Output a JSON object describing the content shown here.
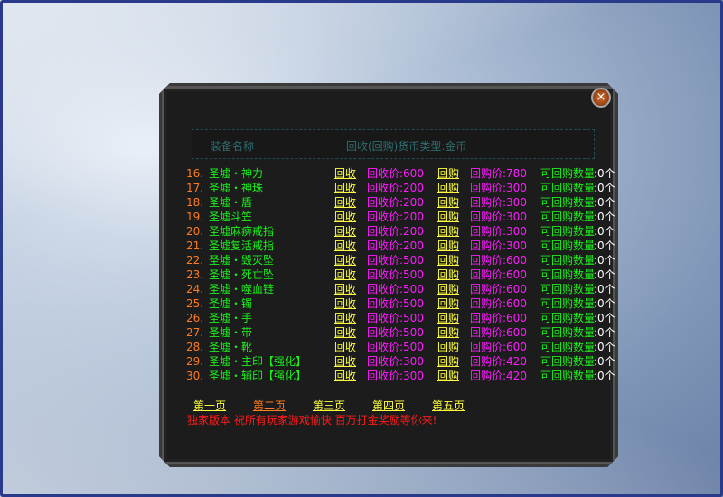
{
  "header": {
    "col_name": "装备名称",
    "col_info": "回收(回购)货币类型:金币"
  },
  "rows": [
    {
      "num": "16.",
      "name": "圣墟・神力",
      "sell": "回收",
      "sell_price": "回收价:600",
      "buy": "回购",
      "buy_price": "回购价:780",
      "qty_label": "可回购数量",
      "qty": ":0个"
    },
    {
      "num": "17.",
      "name": "圣墟・神珠",
      "sell": "回收",
      "sell_price": "回收价:200",
      "buy": "回购",
      "buy_price": "回购价:300",
      "qty_label": "可回购数量",
      "qty": ":0个"
    },
    {
      "num": "18.",
      "name": "圣墟・盾",
      "sell": "回收",
      "sell_price": "回收价:200",
      "buy": "回购",
      "buy_price": "回购价:300",
      "qty_label": "可回购数量",
      "qty": ":0个"
    },
    {
      "num": "19.",
      "name": "圣墟斗笠",
      "sell": "回收",
      "sell_price": "回收价:200",
      "buy": "回购",
      "buy_price": "回购价:300",
      "qty_label": "可回购数量",
      "qty": ":0个"
    },
    {
      "num": "20.",
      "name": "圣墟麻痹戒指",
      "sell": "回收",
      "sell_price": "回收价:200",
      "buy": "回购",
      "buy_price": "回购价:300",
      "qty_label": "可回购数量",
      "qty": ":0个"
    },
    {
      "num": "21.",
      "name": "圣墟复活戒指",
      "sell": "回收",
      "sell_price": "回收价:200",
      "buy": "回购",
      "buy_price": "回购价:300",
      "qty_label": "可回购数量",
      "qty": ":0个"
    },
    {
      "num": "22.",
      "name": "圣墟・毁灭坠",
      "sell": "回收",
      "sell_price": "回收价:500",
      "buy": "回购",
      "buy_price": "回购价:600",
      "qty_label": "可回购数量",
      "qty": ":0个"
    },
    {
      "num": "23.",
      "name": "圣墟・死亡坠",
      "sell": "回收",
      "sell_price": "回收价:500",
      "buy": "回购",
      "buy_price": "回购价:600",
      "qty_label": "可回购数量",
      "qty": ":0个"
    },
    {
      "num": "24.",
      "name": "圣墟・噬血链",
      "sell": "回收",
      "sell_price": "回收价:500",
      "buy": "回购",
      "buy_price": "回购价:600",
      "qty_label": "可回购数量",
      "qty": ":0个"
    },
    {
      "num": "25.",
      "name": "圣墟・镯",
      "sell": "回收",
      "sell_price": "回收价:500",
      "buy": "回购",
      "buy_price": "回购价:600",
      "qty_label": "可回购数量",
      "qty": ":0个"
    },
    {
      "num": "26.",
      "name": "圣墟・手",
      "sell": "回收",
      "sell_price": "回收价:500",
      "buy": "回购",
      "buy_price": "回购价:600",
      "qty_label": "可回购数量",
      "qty": ":0个"
    },
    {
      "num": "27.",
      "name": "圣墟・带",
      "sell": "回收",
      "sell_price": "回收价:500",
      "buy": "回购",
      "buy_price": "回购价:600",
      "qty_label": "可回购数量",
      "qty": ":0个"
    },
    {
      "num": "28.",
      "name": "圣墟・靴",
      "sell": "回收",
      "sell_price": "回收价:500",
      "buy": "回购",
      "buy_price": "回购价:600",
      "qty_label": "可回购数量",
      "qty": ":0个"
    },
    {
      "num": "29.",
      "name": "圣墟・主印【强化】",
      "sell": "回收",
      "sell_price": "回收价:300",
      "buy": "回购",
      "buy_price": "回购价:420",
      "qty_label": "可回购数量",
      "qty": ":0个"
    },
    {
      "num": "30.",
      "name": "圣墟・辅印【强化】",
      "sell": "回收",
      "sell_price": "回收价:300",
      "buy": "回购",
      "buy_price": "回购价:420",
      "qty_label": "可回购数量",
      "qty": ":0个"
    }
  ],
  "pages": [
    {
      "label": "第一页",
      "color": "#ffff40"
    },
    {
      "label": "第二页",
      "color": "#ff7a1a",
      "current": true
    },
    {
      "label": "第三页",
      "color": "#ffff40"
    },
    {
      "label": "第四页",
      "color": "#ffff40"
    },
    {
      "label": "第五页",
      "color": "#ffff40"
    }
  ],
  "notice": "独家版本 祝所有玩家游戏愉快 百万打金奖励等你来!",
  "close_icon": "×"
}
